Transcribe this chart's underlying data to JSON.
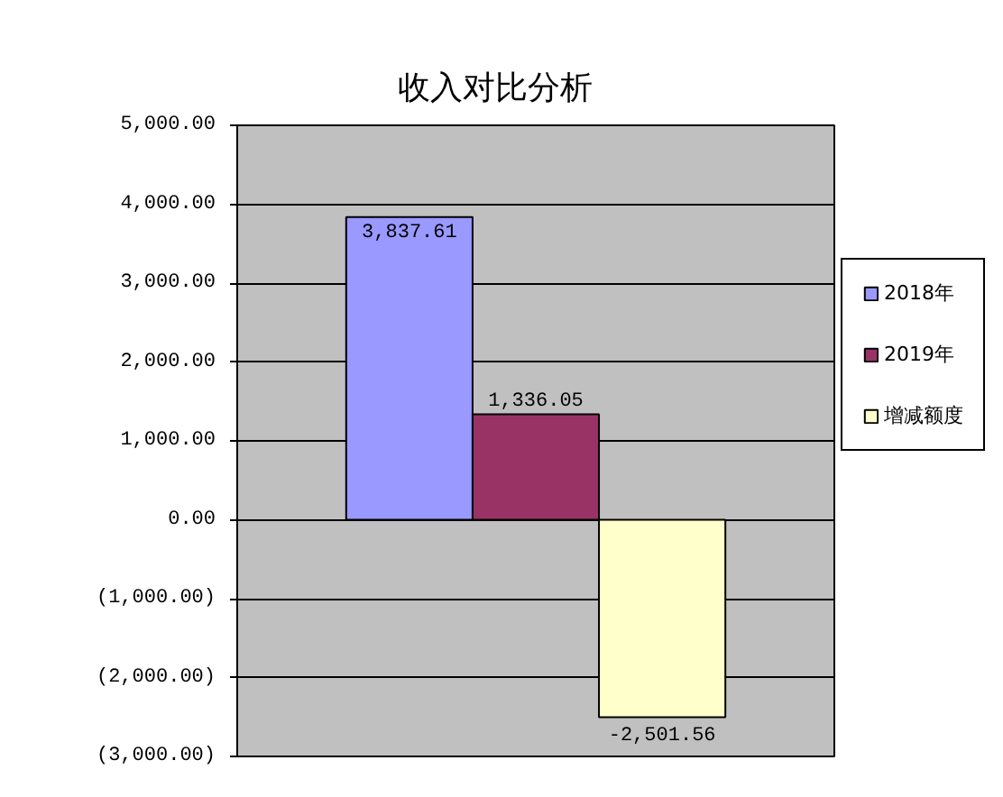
{
  "chart_data": {
    "type": "bar",
    "title": "收入对比分析",
    "categories": [
      null
    ],
    "series": [
      {
        "name": "2018年",
        "color": "#9999ff",
        "values": [
          3837.61
        ],
        "value_labels": [
          "3,837.61"
        ]
      },
      {
        "name": "2019年",
        "color": "#993366",
        "values": [
          1336.05
        ],
        "value_labels": [
          "1,336.05"
        ]
      },
      {
        "name": "增减额度",
        "color": "#ffffcc",
        "values": [
          -2501.56
        ],
        "value_labels": [
          "-2,501.56"
        ]
      }
    ],
    "ylim": [
      -3000,
      5000
    ],
    "yticks": [
      {
        "value": 5000,
        "label": "5,000.00"
      },
      {
        "value": 4000,
        "label": "4,000.00"
      },
      {
        "value": 3000,
        "label": "3,000.00"
      },
      {
        "value": 2000,
        "label": "2,000.00"
      },
      {
        "value": 1000,
        "label": "1,000.00"
      },
      {
        "value": 0,
        "label": "0.00"
      },
      {
        "value": -1000,
        "label": "(1,000.00)"
      },
      {
        "value": -2000,
        "label": "(2,000.00)"
      },
      {
        "value": -3000,
        "label": "(3,000.00)"
      }
    ],
    "grid": "y",
    "legend": "right"
  }
}
